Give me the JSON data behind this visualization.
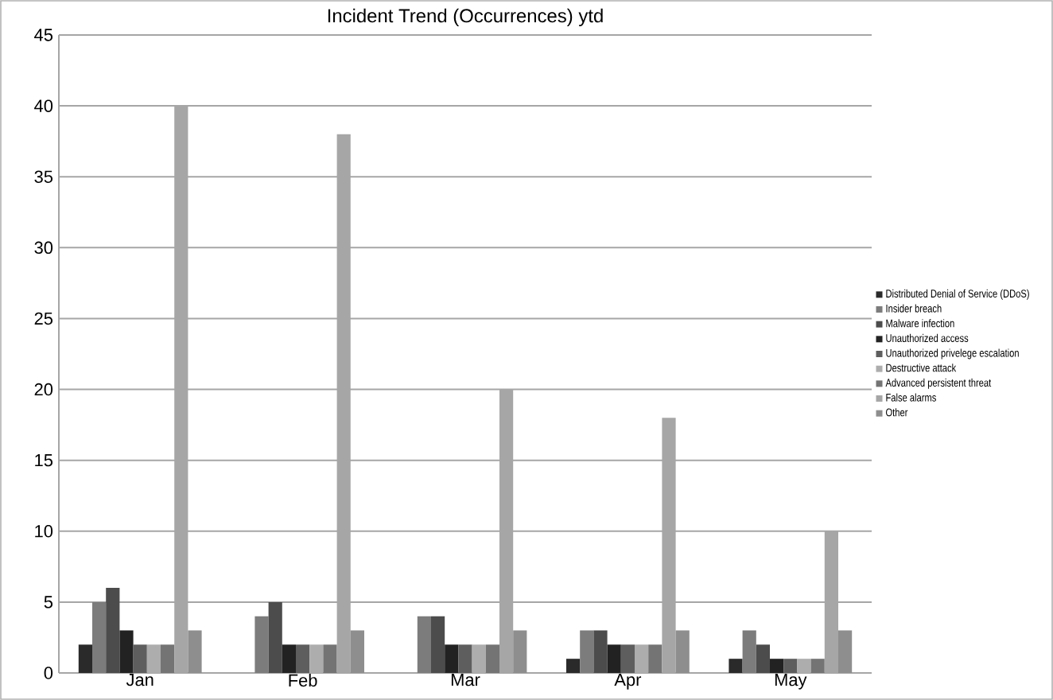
{
  "chart_data": {
    "type": "bar",
    "title": "Incident Trend (Occurrences) ytd",
    "categories": [
      "Jan",
      "Feb",
      "Mar",
      "Apr",
      "May"
    ],
    "series": [
      {
        "name": "Distributed Denial of Service (DDoS)",
        "color": "#2a2a2a",
        "values": [
          2,
          0,
          0,
          1,
          1
        ]
      },
      {
        "name": "Insider breach",
        "color": "#7c7c7c",
        "values": [
          5,
          4,
          4,
          3,
          3
        ]
      },
      {
        "name": "Malware infection",
        "color": "#4c4c4c",
        "values": [
          6,
          5,
          4,
          3,
          2
        ]
      },
      {
        "name": "Unauthorized access",
        "color": "#222222",
        "values": [
          3,
          2,
          2,
          2,
          1
        ]
      },
      {
        "name": "Unauthorized privelege escalation",
        "color": "#5e5e5e",
        "values": [
          2,
          2,
          2,
          2,
          1
        ]
      },
      {
        "name": "Destructive attack",
        "color": "#adadad",
        "values": [
          2,
          2,
          2,
          2,
          1
        ]
      },
      {
        "name": "Advanced persistent threat",
        "color": "#747474",
        "values": [
          2,
          2,
          2,
          2,
          1
        ]
      },
      {
        "name": "False alarms",
        "color": "#a6a6a6",
        "values": [
          40,
          38,
          20,
          18,
          10
        ]
      },
      {
        "name": "Other",
        "color": "#8e8e8e",
        "values": [
          3,
          3,
          3,
          3,
          3
        ]
      }
    ],
    "ylim": [
      0,
      45
    ],
    "yticks": [
      0,
      5,
      10,
      15,
      20,
      25,
      30,
      35,
      40,
      45
    ],
    "grid": "y",
    "legend": "right"
  }
}
